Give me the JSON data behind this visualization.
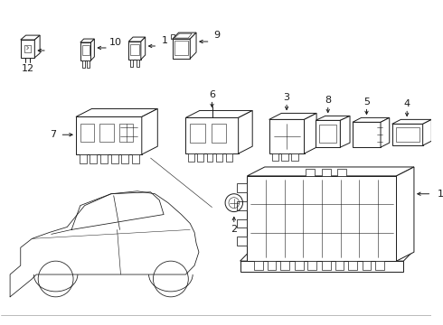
{
  "bg_color": "#ffffff",
  "line_color": "#1a1a1a",
  "lw_main": 0.7,
  "lw_inner": 0.4,
  "figsize": [
    4.9,
    3.6
  ],
  "dpi": 100
}
